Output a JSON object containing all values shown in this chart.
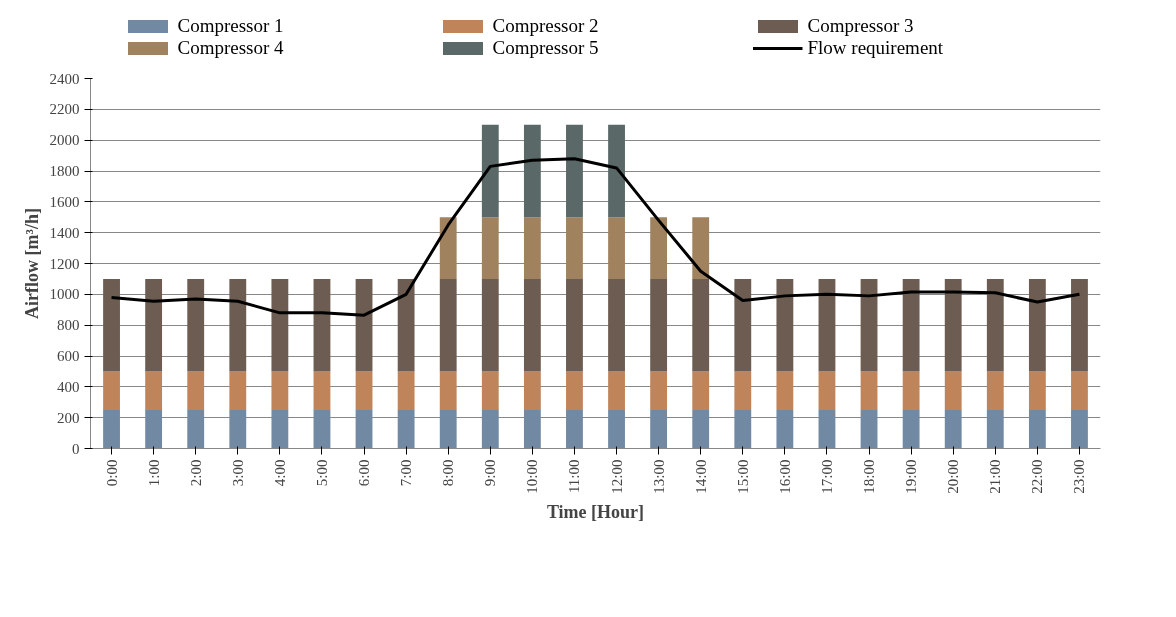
{
  "chart_data": {
    "type": "bar",
    "stacked": true,
    "xlabel": "Time [Hour]",
    "ylabel": "Airflow [m³/h]",
    "categories": [
      "0:00",
      "1:00",
      "2:00",
      "3:00",
      "4:00",
      "5:00",
      "6:00",
      "7:00",
      "8:00",
      "9:00",
      "10:00",
      "11:00",
      "12:00",
      "13:00",
      "14:00",
      "15:00",
      "16:00",
      "17:00",
      "18:00",
      "19:00",
      "20:00",
      "21:00",
      "22:00",
      "23:00"
    ],
    "ylim": [
      0,
      2400
    ],
    "yticks": [
      0,
      200,
      400,
      600,
      800,
      1000,
      1200,
      1400,
      1600,
      1800,
      2000,
      2200,
      2400
    ],
    "grid": "y",
    "legend": "top",
    "series": [
      {
        "name": "Compressor 1",
        "color": "#7189a3",
        "values": [
          250,
          250,
          250,
          250,
          250,
          250,
          250,
          250,
          250,
          250,
          250,
          250,
          250,
          250,
          250,
          250,
          250,
          250,
          250,
          250,
          250,
          250,
          250,
          250
        ]
      },
      {
        "name": "Compressor 2",
        "color": "#c0845a",
        "values": [
          250,
          250,
          250,
          250,
          250,
          250,
          250,
          250,
          250,
          250,
          250,
          250,
          250,
          250,
          250,
          250,
          250,
          250,
          250,
          250,
          250,
          250,
          250,
          250
        ]
      },
      {
        "name": "Compressor 3",
        "color": "#6c5c52",
        "values": [
          600,
          600,
          600,
          600,
          600,
          600,
          600,
          600,
          600,
          600,
          600,
          600,
          600,
          600,
          600,
          600,
          600,
          600,
          600,
          600,
          600,
          600,
          600,
          600
        ]
      },
      {
        "name": "Compressor 4",
        "color": "#a0825e",
        "values": [
          null,
          null,
          null,
          null,
          null,
          null,
          null,
          null,
          400,
          400,
          400,
          400,
          400,
          400,
          400,
          null,
          null,
          null,
          null,
          null,
          null,
          null,
          null,
          null
        ]
      },
      {
        "name": "Compressor 5",
        "color": "#5a6868",
        "values": [
          null,
          null,
          null,
          null,
          null,
          null,
          null,
          null,
          null,
          600,
          600,
          600,
          600,
          null,
          null,
          null,
          null,
          null,
          null,
          null,
          null,
          null,
          null,
          null
        ]
      },
      {
        "name": "Flow requirement",
        "type": "line",
        "color": "#000000",
        "values": [
          980,
          955,
          970,
          955,
          880,
          880,
          865,
          1000,
          1450,
          1830,
          1870,
          1880,
          1820,
          1480,
          1150,
          960,
          990,
          1000,
          990,
          1015,
          1015,
          1010,
          950,
          1000
        ]
      }
    ]
  }
}
